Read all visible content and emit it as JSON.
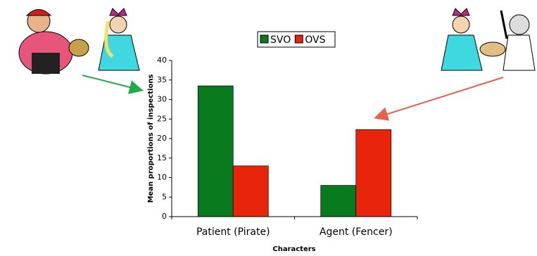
{
  "chart_data": {
    "type": "bar",
    "categories": [
      "Patient (Pirate)",
      "Agent (Fencer)"
    ],
    "series": [
      {
        "name": "SVO",
        "color": "#0a7a1e",
        "values": [
          33.5,
          8
        ]
      },
      {
        "name": "OVS",
        "color": "#e8250a",
        "values": [
          13,
          22.3
        ]
      }
    ],
    "y_label": "Mean proportions of inspections",
    "x_label": "Characters",
    "ylim": [
      0,
      40
    ],
    "yticks": [
      0,
      5,
      10,
      15,
      20,
      25,
      30,
      35,
      40
    ]
  }
}
